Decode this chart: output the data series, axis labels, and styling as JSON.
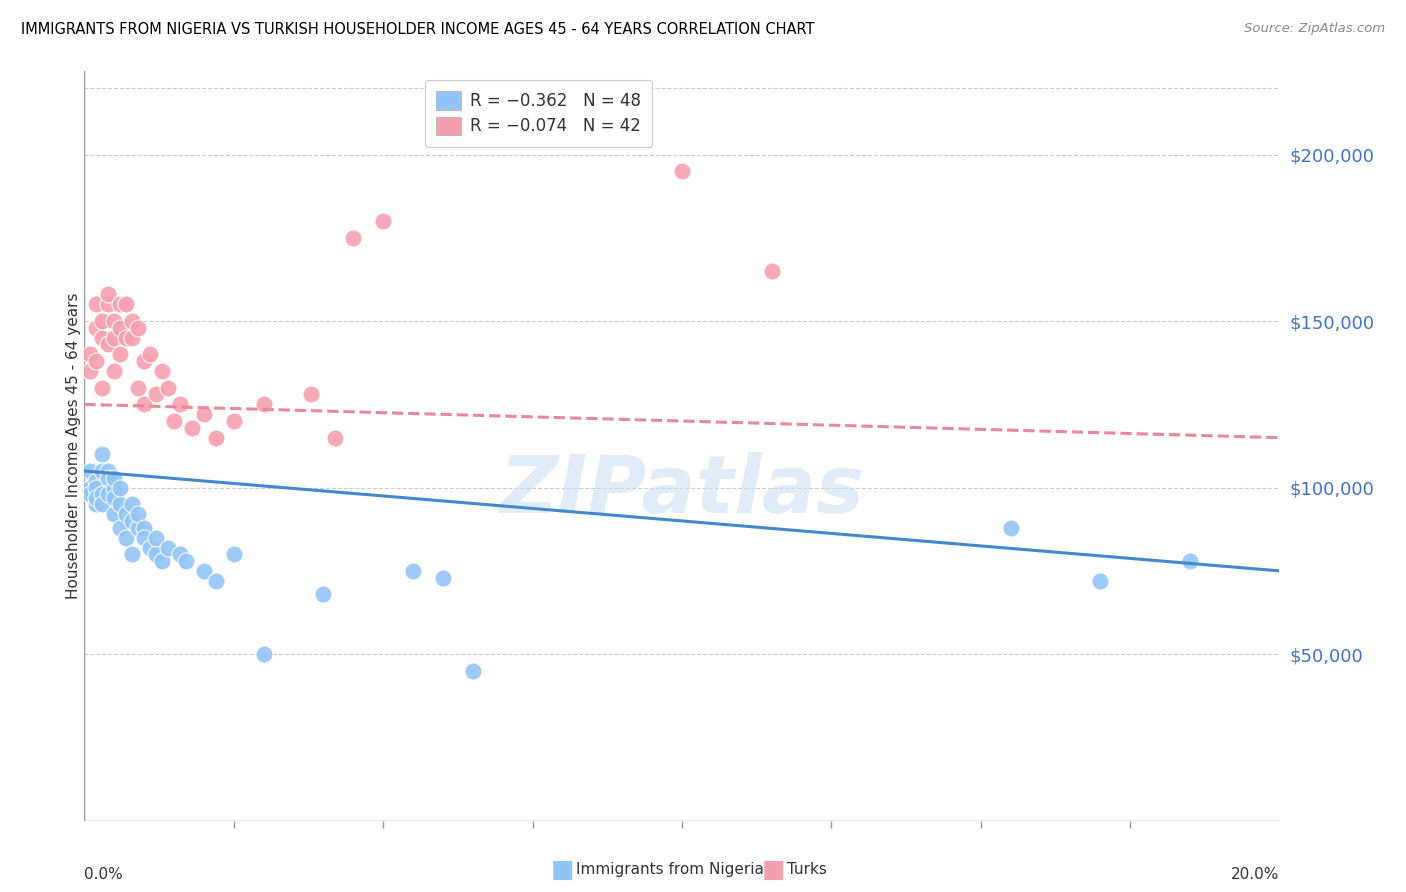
{
  "title": "IMMIGRANTS FROM NIGERIA VS TURKISH HOUSEHOLDER INCOME AGES 45 - 64 YEARS CORRELATION CHART",
  "source": "Source: ZipAtlas.com",
  "ylabel": "Householder Income Ages 45 - 64 years",
  "xlim": [
    0.0,
    0.2
  ],
  "ylim": [
    0,
    225000
  ],
  "yticks": [
    50000,
    100000,
    150000,
    200000
  ],
  "ytick_labels": [
    "$50,000",
    "$100,000",
    "$150,000",
    "$200,000"
  ],
  "nigeria_color": "#92c5f5",
  "turks_color": "#f5a0b0",
  "nigeria_line_color": "#4488cc",
  "turks_line_color": "#e88898",
  "watermark": "ZIPatlas",
  "nigeria_x": [
    0.001,
    0.001,
    0.001,
    0.002,
    0.002,
    0.002,
    0.002,
    0.003,
    0.003,
    0.003,
    0.003,
    0.004,
    0.004,
    0.004,
    0.005,
    0.005,
    0.005,
    0.005,
    0.006,
    0.006,
    0.006,
    0.007,
    0.007,
    0.008,
    0.008,
    0.008,
    0.009,
    0.009,
    0.01,
    0.01,
    0.011,
    0.012,
    0.012,
    0.013,
    0.014,
    0.016,
    0.017,
    0.02,
    0.022,
    0.025,
    0.03,
    0.04,
    0.055,
    0.06,
    0.065,
    0.155,
    0.17,
    0.185
  ],
  "nigeria_y": [
    100000,
    98000,
    105000,
    95000,
    102000,
    100000,
    97000,
    110000,
    105000,
    98000,
    95000,
    105000,
    98000,
    103000,
    100000,
    92000,
    97000,
    103000,
    95000,
    100000,
    88000,
    92000,
    85000,
    95000,
    90000,
    80000,
    88000,
    92000,
    88000,
    85000,
    82000,
    80000,
    85000,
    78000,
    82000,
    80000,
    78000,
    75000,
    72000,
    80000,
    50000,
    68000,
    75000,
    73000,
    45000,
    88000,
    72000,
    78000
  ],
  "turks_x": [
    0.001,
    0.001,
    0.002,
    0.002,
    0.002,
    0.003,
    0.003,
    0.003,
    0.004,
    0.004,
    0.004,
    0.005,
    0.005,
    0.005,
    0.006,
    0.006,
    0.006,
    0.007,
    0.007,
    0.008,
    0.008,
    0.009,
    0.009,
    0.01,
    0.01,
    0.011,
    0.012,
    0.013,
    0.014,
    0.015,
    0.016,
    0.018,
    0.02,
    0.022,
    0.025,
    0.03,
    0.038,
    0.042,
    0.045,
    0.05,
    0.1,
    0.115
  ],
  "turks_y": [
    140000,
    135000,
    148000,
    138000,
    155000,
    145000,
    130000,
    150000,
    155000,
    143000,
    158000,
    150000,
    135000,
    145000,
    155000,
    140000,
    148000,
    145000,
    155000,
    150000,
    145000,
    148000,
    130000,
    138000,
    125000,
    140000,
    128000,
    135000,
    130000,
    120000,
    125000,
    118000,
    122000,
    115000,
    120000,
    125000,
    128000,
    115000,
    175000,
    180000,
    195000,
    165000
  ]
}
